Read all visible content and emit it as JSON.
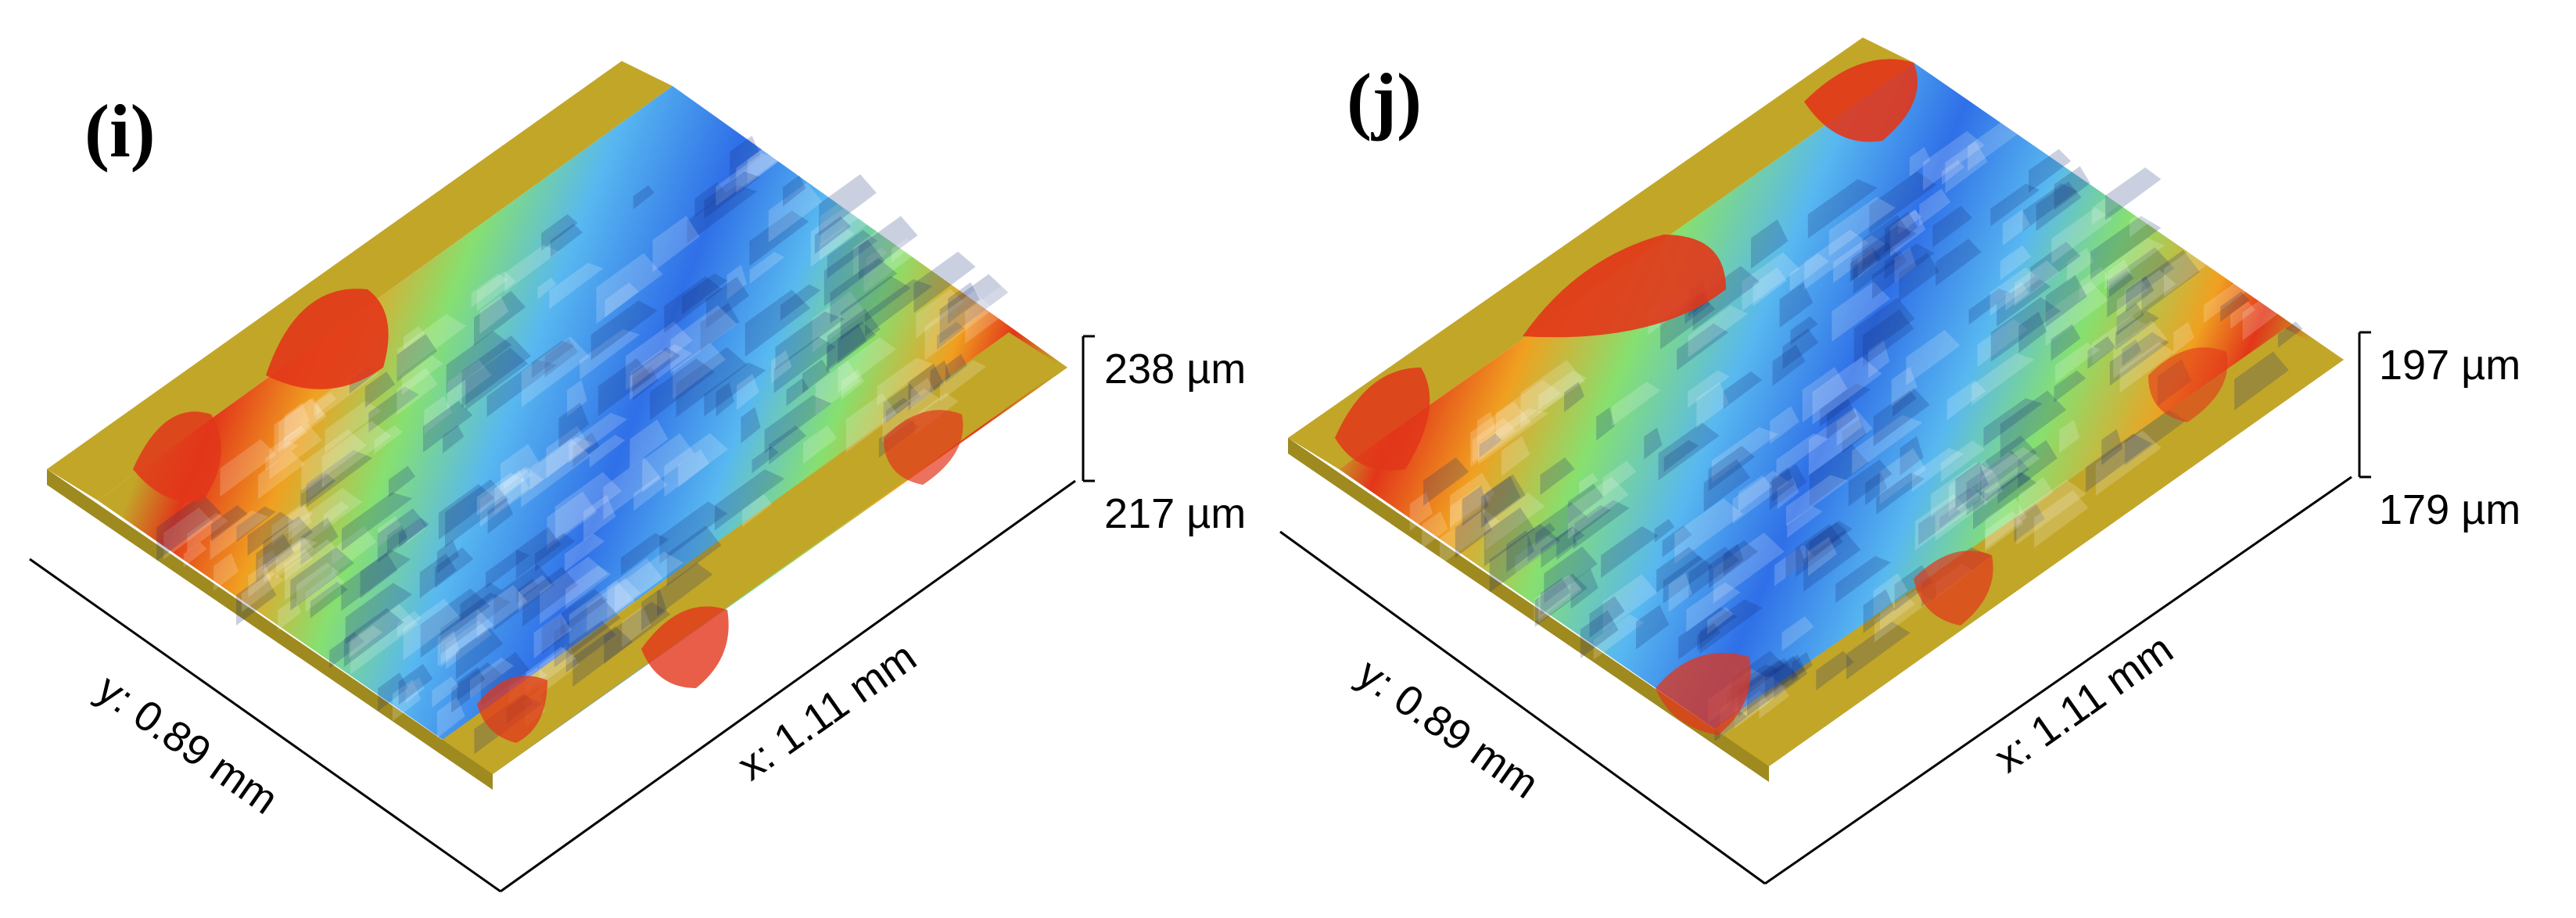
{
  "panels": [
    {
      "label": "(i)",
      "x_axis": "x: 1.11 mm",
      "y_axis": "y: 0.89 mm",
      "z_max": "238 µm",
      "z_min": "217 µm"
    },
    {
      "label": "(j)",
      "x_axis": "x: 1.11 mm",
      "y_axis": "y: 0.89 mm",
      "z_max": "197 µm",
      "z_min": "179 µm"
    }
  ],
  "colors": {
    "flat": "#c2a628",
    "low": "#2f6fe8",
    "mid_low": "#58b8f0",
    "mid": "#86e070",
    "mid_high": "#f0a020",
    "high": "#e2361a"
  }
}
